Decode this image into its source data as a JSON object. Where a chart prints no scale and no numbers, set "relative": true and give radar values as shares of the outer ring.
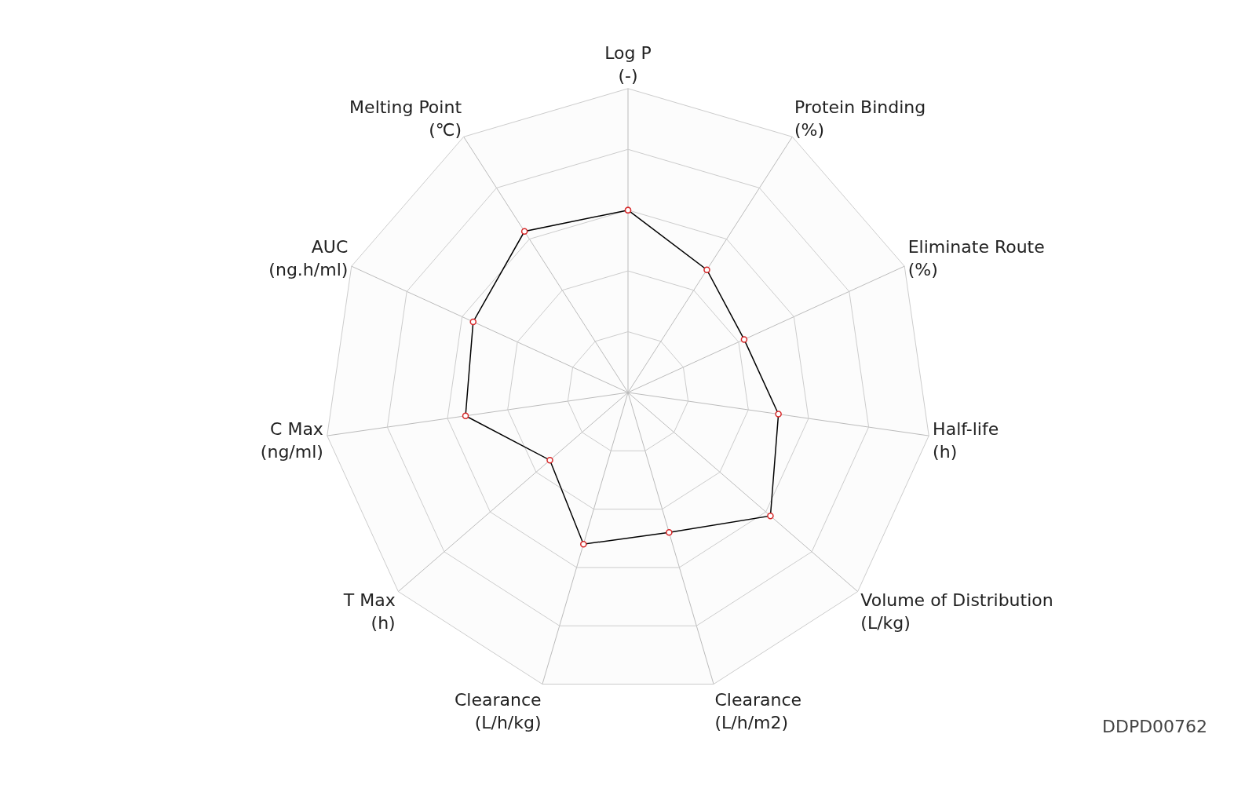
{
  "chart_data": {
    "type": "radar",
    "relative": true,
    "grid": true,
    "marker": "circle",
    "line_style": "solid",
    "categories": [
      "Log P\n(-)",
      "Protein Binding\n(%)",
      "Eliminate Route\n(%)",
      "Half-life\n(h)",
      "Volume of Distribution\n(L/kg)",
      "Clearance\n(L/h/m2)",
      "Clearance\n(L/h/kg)",
      "T Max\n(h)",
      "C Max\n(ng/ml)",
      "AUC\n(ng.h/ml)",
      "Melting Point\n(℃)"
    ],
    "series": [
      {
        "color": "#000000",
        "values": [
          0.6,
          0.48,
          0.42,
          0.5,
          0.62,
          0.48,
          0.52,
          0.34,
          0.54,
          0.56,
          0.63
        ]
      }
    ],
    "annotations": [
      "DDPD00762"
    ]
  }
}
